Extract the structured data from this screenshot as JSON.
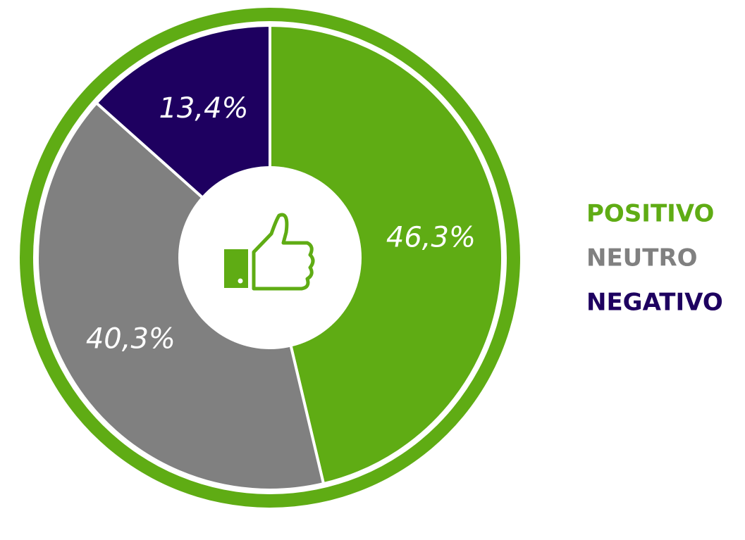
{
  "chart_data": {
    "type": "pie",
    "categories": [
      "POSITIVO",
      "NEUTRO",
      "NEGATIVO"
    ],
    "values": [
      46.3,
      40.3,
      13.4
    ],
    "value_labels": [
      "46,3%",
      "40,3%",
      "13,4%"
    ],
    "colors": [
      "#5fac14",
      "#808080",
      "#1e0060"
    ],
    "donut": true,
    "legend": "right"
  }
}
